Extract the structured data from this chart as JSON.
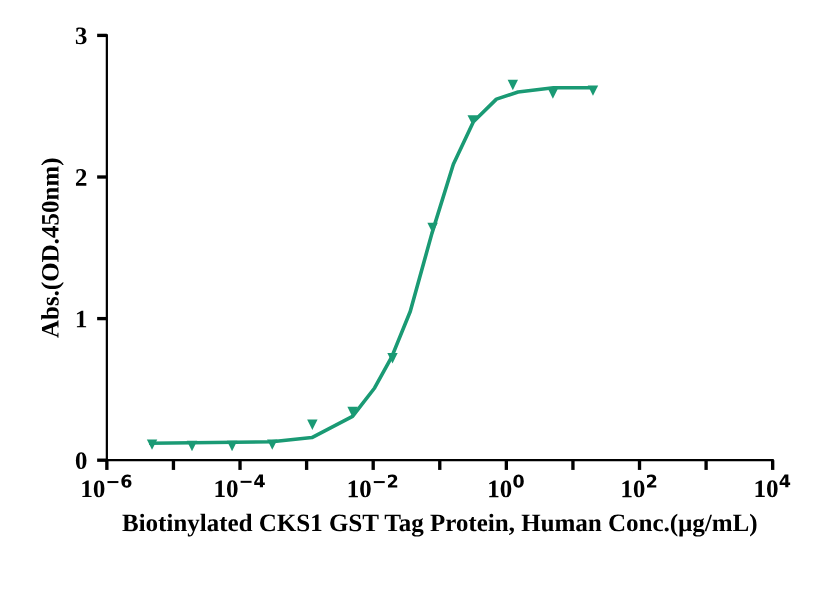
{
  "chart_data": {
    "type": "scatter",
    "xlabel": "Biotinylated CKS1 GST Tag Protein, Human Conc.(μg/mL)",
    "ylabel": "Abs.(OD.450nm)",
    "log": "x",
    "xlim": [
      1e-06,
      10000
    ],
    "ylim": [
      0,
      3
    ],
    "xticks": [
      {
        "value": 1e-06,
        "label": "10$^{−6}$"
      },
      {
        "value": 1e-05,
        "label": null
      },
      {
        "value": 0.0001,
        "label": "10$^{−4}$"
      },
      {
        "value": 0.001,
        "label": null
      },
      {
        "value": 0.01,
        "label": "10$^{−2}$"
      },
      {
        "value": 0.1,
        "label": null
      },
      {
        "value": 1,
        "label": "10$^{0}$"
      },
      {
        "value": 10,
        "label": null
      },
      {
        "value": 100,
        "label": "10$^{2}$"
      },
      {
        "value": 1000,
        "label": null
      },
      {
        "value": 10000,
        "label": "10$^{4}$"
      }
    ],
    "yticks": [
      0,
      1,
      2,
      3
    ],
    "grid": false,
    "legend": false,
    "series": [
      {
        "color": "#1a9a74",
        "marker": "triangle",
        "x": [
          4.77e-06,
          1.9e-05,
          7.6e-05,
          0.000305,
          0.00122,
          0.0049,
          0.0195,
          0.078,
          0.3125,
          1.25,
          5,
          20
        ],
        "values": [
          0.11,
          0.1,
          0.1,
          0.11,
          0.25,
          0.34,
          0.72,
          1.64,
          2.4,
          2.65,
          2.59,
          2.61
        ]
      },
      {
        "type": "line",
        "color": "#1a9a74",
        "marker": "none",
        "line_style": "solid",
        "x": [
          4.6e-06,
          0.0003,
          0.0012,
          0.0049,
          0.0105,
          0.019,
          0.036,
          0.076,
          0.16,
          0.32,
          0.71,
          1.5,
          5.1,
          20.4
        ],
        "values": [
          0.12,
          0.13,
          0.16,
          0.31,
          0.51,
          0.73,
          1.05,
          1.6,
          2.09,
          2.39,
          2.55,
          2.6,
          2.63,
          2.63
        ]
      }
    ]
  }
}
